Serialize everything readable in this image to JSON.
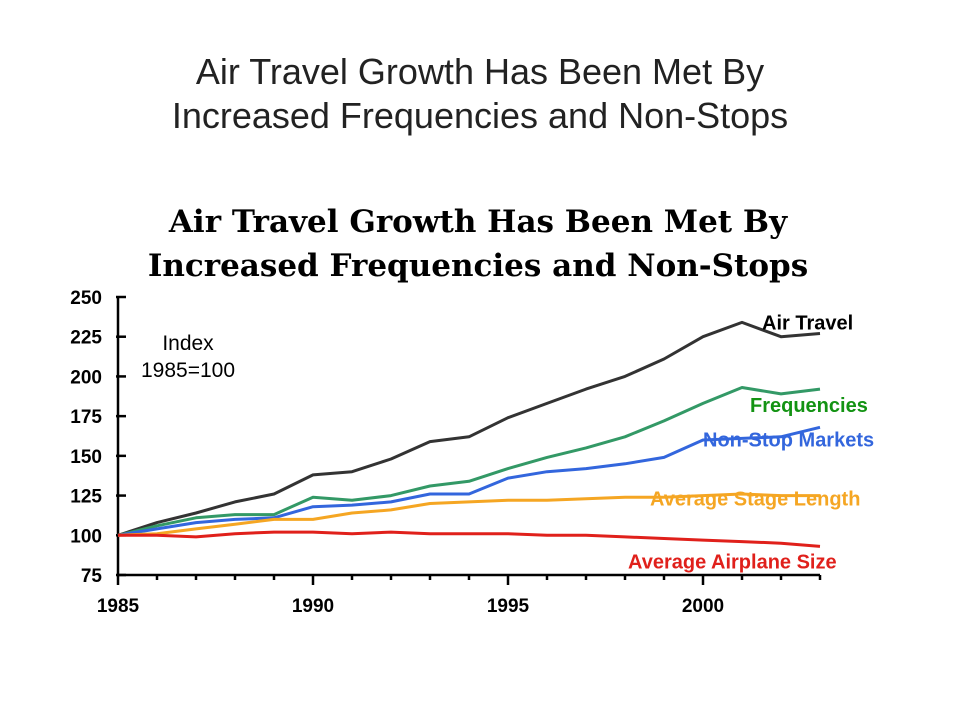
{
  "slide": {
    "title_line1": "Air Travel Growth Has Been Met By",
    "title_line2": "Increased Frequencies and Non-Stops"
  },
  "chart_data": {
    "type": "line",
    "title_lines": [
      "Air Travel Growth Has Been Met By",
      "Increased Frequencies and Non-Stops"
    ],
    "annotation_lines": [
      "Index",
      "1985=100"
    ],
    "xlim": [
      1985,
      2003
    ],
    "ylim": [
      75,
      250
    ],
    "x_ticks": [
      1985,
      1990,
      1995,
      2000
    ],
    "y_ticks": [
      75,
      100,
      125,
      150,
      175,
      200,
      225,
      250
    ],
    "x": [
      1985,
      1986,
      1987,
      1988,
      1989,
      1990,
      1991,
      1992,
      1993,
      1994,
      1995,
      1996,
      1997,
      1998,
      1999,
      2000,
      2001,
      2002,
      2003
    ],
    "grid": false,
    "legend": "inline labels at right end of each line",
    "series": [
      {
        "name": "Air Travel",
        "color": "#333333",
        "label_color": "#000000",
        "values": [
          100,
          108,
          114,
          121,
          126,
          138,
          140,
          148,
          159,
          162,
          174,
          183,
          192,
          200,
          211,
          225,
          234,
          225,
          227
        ]
      },
      {
        "name": "Frequencies",
        "color": "#339966",
        "label_color": "#139313",
        "values": [
          100,
          106,
          111,
          113,
          113,
          124,
          122,
          125,
          131,
          134,
          142,
          149,
          155,
          162,
          172,
          183,
          193,
          189,
          192
        ]
      },
      {
        "name": "Non-Stop Markets",
        "color": "#3366dd",
        "label_color": "#3366dd",
        "values": [
          100,
          104,
          108,
          110,
          111,
          118,
          119,
          121,
          126,
          126,
          136,
          140,
          142,
          145,
          149,
          160,
          161,
          162,
          168
        ]
      },
      {
        "name": "Average Stage Length",
        "color": "#f5a623",
        "label_color": "#f5a623",
        "values": [
          100,
          101,
          104,
          107,
          110,
          110,
          114,
          116,
          120,
          121,
          122,
          122,
          123,
          124,
          124,
          125,
          126,
          125,
          125
        ]
      },
      {
        "name": "Average Airplane Size",
        "color": "#e0201b",
        "label_color": "#e0201b",
        "values": [
          100,
          100,
          99,
          101,
          102,
          102,
          101,
          102,
          101,
          101,
          101,
          100,
          100,
          99,
          98,
          97,
          96,
          95,
          93
        ]
      }
    ]
  }
}
